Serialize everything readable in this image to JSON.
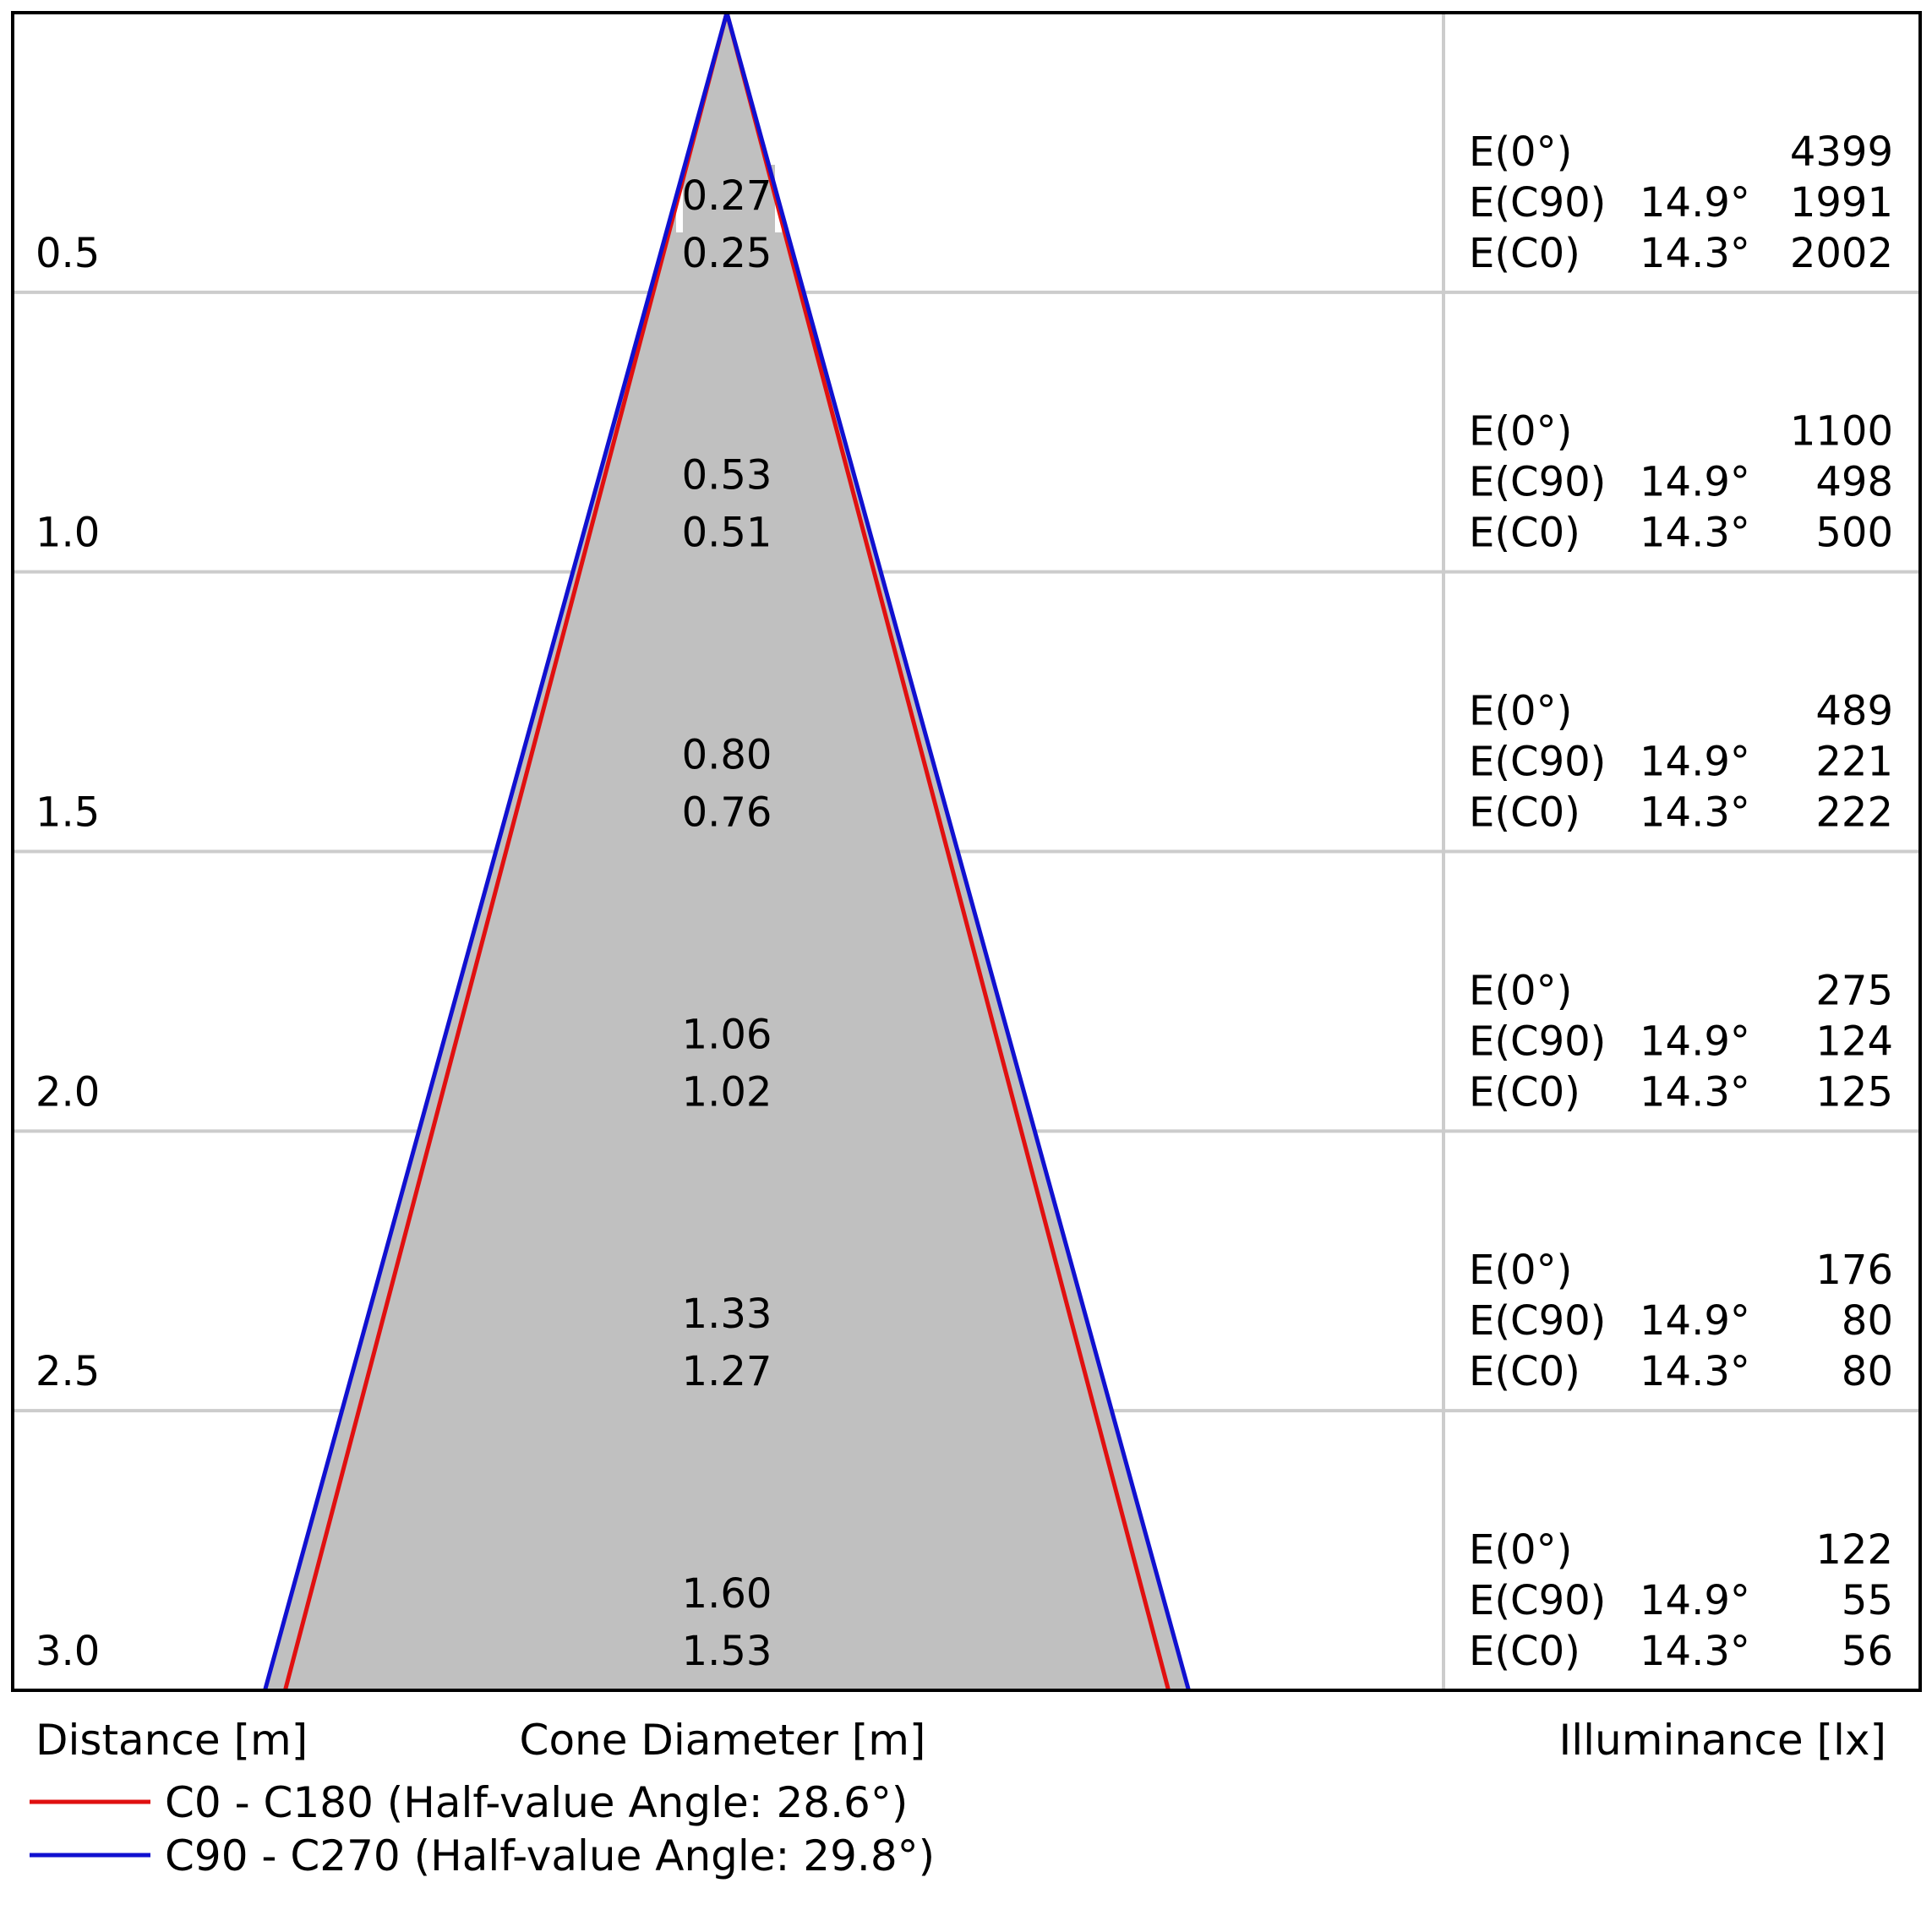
{
  "chart_data": {
    "type": "cone-diagram",
    "axis_labels": {
      "distance": "Distance [m]",
      "cone_diameter": "Cone Diameter [m]",
      "illuminance": "Illuminance [lx]"
    },
    "rows": [
      {
        "distance": "0.5",
        "diam_c90": "0.27",
        "diam_c0": "0.25",
        "e": [
          {
            "label": "E(0°)",
            "angle": "",
            "value": "4399"
          },
          {
            "label": "E(C90)",
            "angle": "14.9°",
            "value": "1991"
          },
          {
            "label": "E(C0)",
            "angle": "14.3°",
            "value": "2002"
          }
        ]
      },
      {
        "distance": "1.0",
        "diam_c90": "0.53",
        "diam_c0": "0.51",
        "e": [
          {
            "label": "E(0°)",
            "angle": "",
            "value": "1100"
          },
          {
            "label": "E(C90)",
            "angle": "14.9°",
            "value": "498"
          },
          {
            "label": "E(C0)",
            "angle": "14.3°",
            "value": "500"
          }
        ]
      },
      {
        "distance": "1.5",
        "diam_c90": "0.80",
        "diam_c0": "0.76",
        "e": [
          {
            "label": "E(0°)",
            "angle": "",
            "value": "489"
          },
          {
            "label": "E(C90)",
            "angle": "14.9°",
            "value": "221"
          },
          {
            "label": "E(C0)",
            "angle": "14.3°",
            "value": "222"
          }
        ]
      },
      {
        "distance": "2.0",
        "diam_c90": "1.06",
        "diam_c0": "1.02",
        "e": [
          {
            "label": "E(0°)",
            "angle": "",
            "value": "275"
          },
          {
            "label": "E(C90)",
            "angle": "14.9°",
            "value": "124"
          },
          {
            "label": "E(C0)",
            "angle": "14.3°",
            "value": "125"
          }
        ]
      },
      {
        "distance": "2.5",
        "diam_c90": "1.33",
        "diam_c0": "1.27",
        "e": [
          {
            "label": "E(0°)",
            "angle": "",
            "value": "176"
          },
          {
            "label": "E(C90)",
            "angle": "14.9°",
            "value": "80"
          },
          {
            "label": "E(C0)",
            "angle": "14.3°",
            "value": "80"
          }
        ]
      },
      {
        "distance": "3.0",
        "diam_c90": "1.60",
        "diam_c0": "1.53",
        "e": [
          {
            "label": "E(0°)",
            "angle": "",
            "value": "122"
          },
          {
            "label": "E(C90)",
            "angle": "14.9°",
            "value": "55"
          },
          {
            "label": "E(C0)",
            "angle": "14.3°",
            "value": "56"
          }
        ]
      }
    ],
    "series": [
      {
        "name": "C0 - C180 (Half-value Angle: 28.6°)",
        "half_value_angle": 28.6,
        "color": "#e01010",
        "diameters": [
          0.25,
          0.51,
          0.76,
          1.02,
          1.27,
          1.53
        ]
      },
      {
        "name": "C90 - C270 (Half-value Angle: 29.8°)",
        "half_value_angle": 29.8,
        "color": "#1010d0",
        "diameters": [
          0.27,
          0.53,
          0.8,
          1.06,
          1.33,
          1.6
        ]
      }
    ],
    "distances": [
      0.5,
      1.0,
      1.5,
      2.0,
      2.5,
      3.0
    ],
    "cone_fill": "#c0c0c0",
    "grid_color": "#cccccc",
    "legend_position": "bottom-left"
  }
}
